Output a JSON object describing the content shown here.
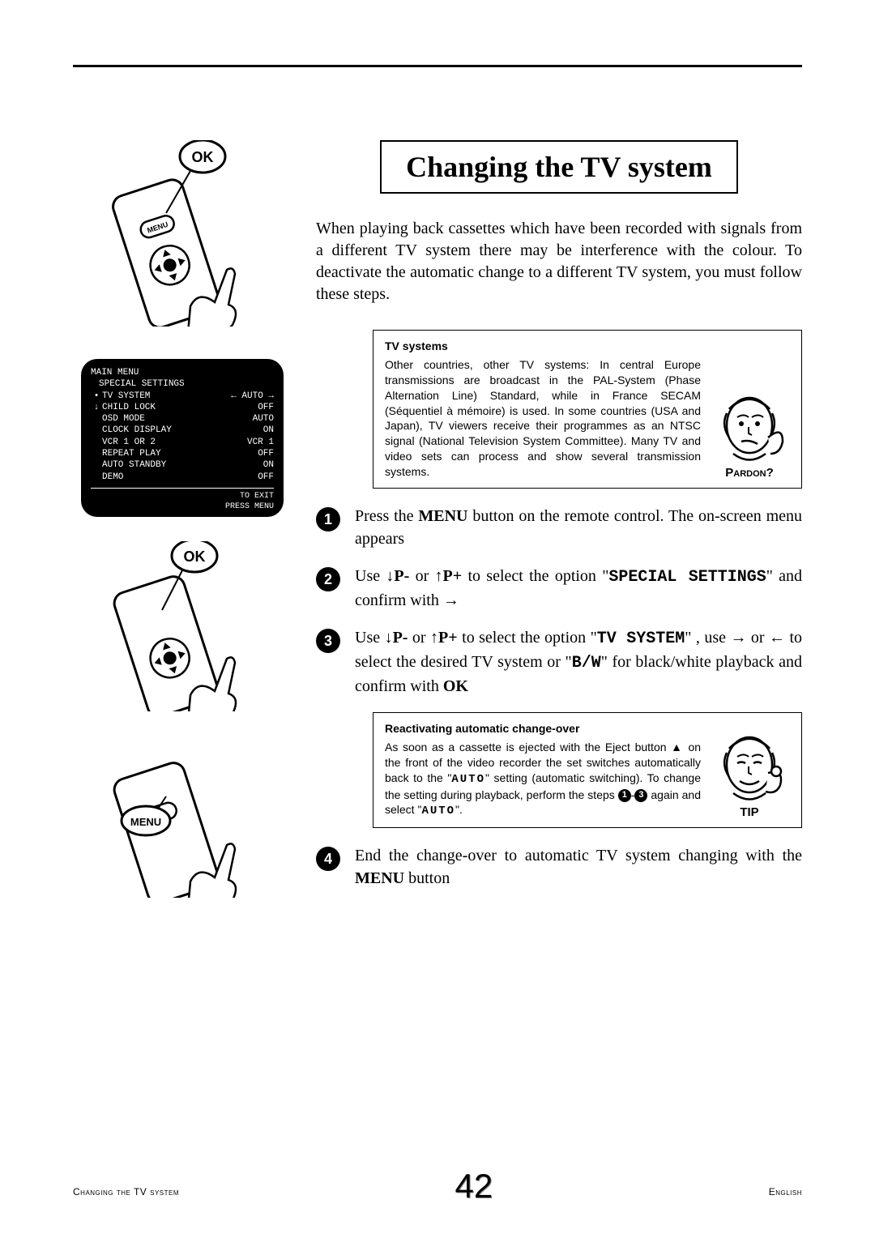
{
  "title": "Changing the TV system",
  "intro": "When playing back cassettes which have been recorded with signals from a different TV system there may be interference with the colour. To deactivate the automatic change to a different TV system, you must follow these steps.",
  "info1": {
    "title": "TV systems",
    "body": "Other countries, other TV systems: In central Europe transmissions are broadcast in the PAL-System (Phase Alternation Line) Standard, while in France SECAM (Séquentiel à mémoire) is used. In some countries (USA and Japan), TV viewers receive their programmes as an NTSC signal (National Television System Committee). Many TV and video sets can process and show several transmission systems.",
    "label": "Pardon?"
  },
  "steps": {
    "s1a": "Press the ",
    "s1b": "MENU",
    "s1c": " button on the remote control. The on-screen menu appears",
    "s2a": "Use ",
    "s2b": "P-",
    "s2c": " or ",
    "s2d": "P+",
    "s2e": " to select the option \"",
    "s2f": "SPECIAL SETTINGS",
    "s2g": "\" and confirm with ",
    "s3a": "Use ",
    "s3b": "P-",
    "s3c": " or ",
    "s3d": "P+",
    "s3e": "  to select the option \"",
    "s3f": "TV SYSTEM",
    "s3g": "\" , use ",
    "s3h": " or ",
    "s3i": "  to select the desired TV system or \"",
    "s3j": "B/W",
    "s3k": "\" for black/white playback and confirm with ",
    "s3l": "OK",
    "s4a": "End the change-over to automatic TV system changing with the ",
    "s4b": "MENU",
    "s4c": " button"
  },
  "info2": {
    "title": "Reactivating automatic change-over",
    "body1": "As soon as a cassette is ejected with the Eject button ",
    "body2": " on the front of the video recorder the set switches automatically back to the \"",
    "body3": "AUTO",
    "body4": "\" setting (automatic switching). To change the setting during playback, perform the steps ",
    "body5": " again and select \"",
    "body6": "AUTO",
    "body7": "\".",
    "label": "TIP"
  },
  "osd": {
    "line1": "MAIN MENU",
    "line2": "SPECIAL SETTINGS",
    "rows": [
      {
        "a": "•",
        "l": "TV SYSTEM",
        "r": "← AUTO →"
      },
      {
        "a": "↓",
        "l": "CHILD LOCK",
        "r": "OFF"
      },
      {
        "a": "",
        "l": "OSD MODE",
        "r": "AUTO"
      },
      {
        "a": "",
        "l": "CLOCK DISPLAY",
        "r": "ON"
      },
      {
        "a": "",
        "l": "VCR 1 OR 2",
        "r": "VCR 1"
      },
      {
        "a": "",
        "l": "REPEAT PLAY",
        "r": "OFF"
      },
      {
        "a": "",
        "l": "AUTO STANDBY",
        "r": "ON"
      },
      {
        "a": "",
        "l": "DEMO",
        "r": "OFF"
      }
    ],
    "footer1": "TO EXIT",
    "footer2": "PRESS MENU"
  },
  "footer": {
    "left": "Changing the TV system",
    "page": "42",
    "right": "English"
  },
  "colors": {
    "black": "#000000",
    "white": "#ffffff"
  }
}
